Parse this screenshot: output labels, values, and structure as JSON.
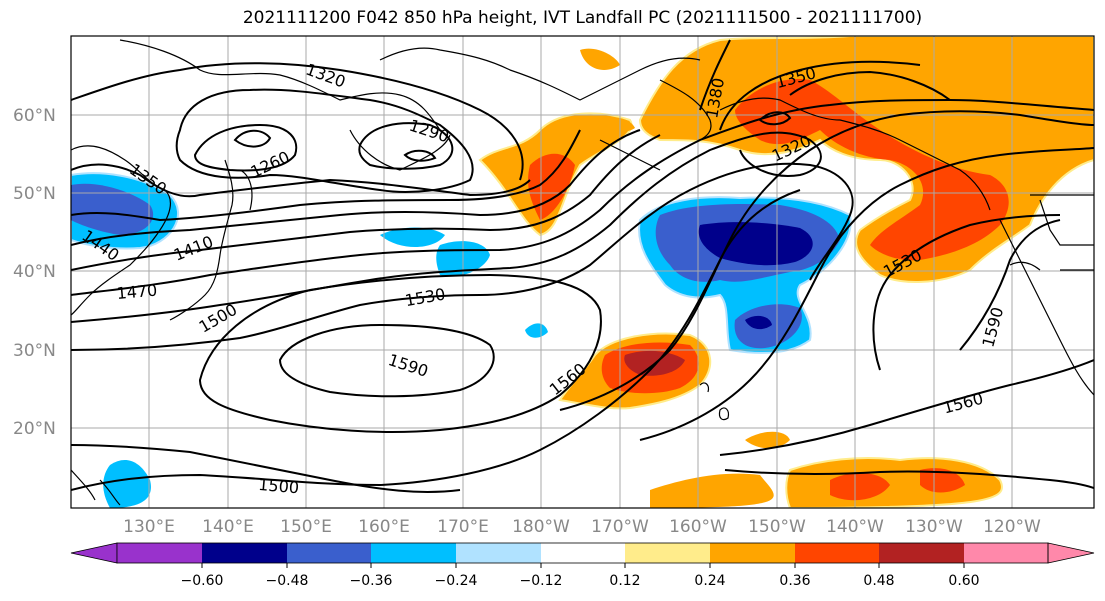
{
  "title": "2021111200 F042 850 hPa height, IVT Landfall PC (2021111500 - 2021111700)",
  "lat_labels": [
    "60°N",
    "50°N",
    "40°N",
    "30°N",
    "20°N"
  ],
  "lon_labels": [
    "130°E",
    "140°E",
    "150°E",
    "160°E",
    "170°E",
    "180°W",
    "170°W",
    "160°W",
    "150°W",
    "140°W",
    "130°W",
    "120°W"
  ],
  "contour_labels": [
    "1320",
    "1290",
    "1260",
    "1350",
    "1410",
    "1440",
    "1470",
    "1500",
    "1530",
    "1590",
    "1560",
    "1380",
    "1350",
    "1320",
    "1530",
    "1590",
    "1560",
    "1500"
  ],
  "colorbar": {
    "ticks": [
      "−0.60",
      "−0.48",
      "−0.36",
      "−0.24",
      "−0.12",
      "0.12",
      "0.24",
      "0.36",
      "0.48",
      "0.60"
    ],
    "colors": [
      "#9932cc",
      "#00008b",
      "#3a5fcd",
      "#00bfff",
      "#b0e2ff",
      "#ffffff",
      "#ffec8b",
      "#ffa500",
      "#ff4500",
      "#b22222",
      "#ff88aa"
    ]
  },
  "colors": {
    "neg_dark": "#00008b",
    "neg_mid": "#3a5fcd",
    "neg_light": "#00bfff",
    "pos_light": "#ffa500",
    "pos_mid": "#ff4500",
    "pos_dark": "#b22222",
    "pos_faint": "#ffec8b"
  }
}
